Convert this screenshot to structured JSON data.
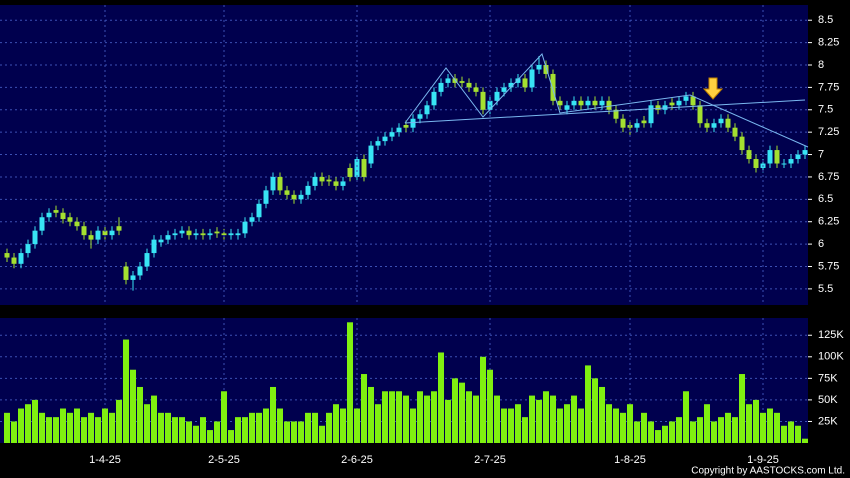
{
  "chart_data": [
    {
      "type": "candlestick",
      "categories": [
        null,
        null,
        null,
        null,
        null,
        null,
        null,
        null,
        null,
        null,
        null,
        null,
        null,
        null,
        "1-4-25",
        null,
        null,
        null,
        null,
        null,
        null,
        null,
        null,
        null,
        null,
        null,
        null,
        null,
        null,
        null,
        null,
        "2-5-25",
        null,
        null,
        null,
        null,
        null,
        null,
        null,
        null,
        null,
        null,
        null,
        null,
        null,
        null,
        null,
        null,
        null,
        null,
        "2-6-25",
        null,
        null,
        null,
        null,
        null,
        null,
        null,
        null,
        null,
        null,
        null,
        null,
        null,
        null,
        null,
        null,
        null,
        null,
        "2-7-25",
        null,
        null,
        null,
        null,
        null,
        null,
        null,
        null,
        null,
        null,
        null,
        null,
        null,
        null,
        null,
        null,
        null,
        null,
        null,
        "1-8-25",
        null,
        null,
        null,
        null,
        null,
        null,
        null,
        null,
        null,
        null,
        null,
        null,
        null,
        null,
        null,
        null,
        null,
        null,
        "1-9-25",
        null,
        null,
        null,
        null,
        null,
        null
      ],
      "open": [
        5.9,
        5.85,
        5.78,
        5.9,
        6.0,
        6.15,
        6.3,
        6.38,
        6.35,
        6.3,
        6.25,
        6.2,
        6.1,
        6.05,
        6.15,
        6.1,
        6.2,
        5.75,
        5.6,
        5.65,
        5.75,
        5.9,
        6.02,
        6.05,
        6.1,
        6.12,
        6.15,
        6.1,
        6.12,
        6.1,
        6.14,
        6.12,
        6.1,
        6.1,
        6.12,
        6.25,
        6.3,
        6.45,
        6.6,
        6.75,
        6.6,
        6.55,
        6.5,
        6.55,
        6.65,
        6.75,
        6.72,
        6.7,
        6.65,
        6.85,
        6.75,
        6.95,
        6.9,
        7.1,
        7.15,
        7.2,
        7.25,
        7.33,
        7.3,
        7.4,
        7.45,
        7.55,
        7.7,
        7.8,
        7.85,
        7.82,
        7.8,
        7.75,
        7.7,
        7.5,
        7.6,
        7.7,
        7.75,
        7.8,
        7.85,
        7.75,
        7.95,
        8.0,
        7.9,
        7.6,
        7.5,
        7.55,
        7.6,
        7.55,
        7.6,
        7.55,
        7.6,
        7.5,
        7.4,
        7.33,
        7.3,
        7.38,
        7.35,
        7.55,
        7.5,
        7.58,
        7.55,
        7.6,
        7.65,
        7.55,
        7.35,
        7.3,
        7.35,
        7.4,
        7.3,
        7.2,
        7.05,
        6.95,
        6.85,
        6.9,
        7.05,
        6.9,
        6.9,
        6.95,
        7.0
      ],
      "close": [
        5.85,
        5.78,
        5.9,
        6.0,
        6.15,
        6.3,
        6.35,
        6.35,
        6.28,
        6.25,
        6.2,
        6.1,
        6.05,
        6.15,
        6.1,
        6.15,
        6.15,
        5.6,
        5.65,
        5.75,
        5.9,
        6.05,
        6.05,
        6.1,
        6.12,
        6.15,
        6.1,
        6.12,
        6.1,
        6.12,
        6.12,
        6.1,
        6.12,
        6.12,
        6.25,
        6.3,
        6.45,
        6.6,
        6.75,
        6.6,
        6.55,
        6.5,
        6.55,
        6.65,
        6.75,
        6.7,
        6.7,
        6.65,
        6.7,
        6.75,
        6.95,
        6.75,
        7.1,
        7.15,
        7.2,
        7.25,
        7.3,
        7.3,
        7.4,
        7.45,
        7.55,
        7.7,
        7.8,
        7.85,
        7.8,
        7.8,
        7.75,
        7.7,
        7.5,
        7.6,
        7.7,
        7.75,
        7.8,
        7.85,
        7.75,
        7.95,
        8.0,
        7.9,
        7.6,
        7.55,
        7.55,
        7.6,
        7.55,
        7.6,
        7.55,
        7.6,
        7.5,
        7.4,
        7.3,
        7.3,
        7.35,
        7.35,
        7.55,
        7.5,
        7.55,
        7.55,
        7.6,
        7.65,
        7.55,
        7.35,
        7.3,
        7.35,
        7.4,
        7.3,
        7.2,
        7.05,
        6.95,
        6.85,
        6.9,
        7.05,
        6.9,
        6.9,
        6.95,
        7.0,
        7.05
      ],
      "high": [
        5.95,
        5.9,
        5.95,
        6.05,
        6.2,
        6.35,
        6.4,
        6.43,
        6.4,
        6.35,
        6.3,
        6.25,
        6.15,
        6.2,
        6.2,
        6.2,
        6.3,
        5.8,
        5.7,
        5.8,
        5.95,
        6.1,
        6.1,
        6.15,
        6.17,
        6.2,
        6.2,
        6.17,
        6.17,
        6.17,
        6.19,
        6.17,
        6.17,
        6.17,
        6.3,
        6.35,
        6.5,
        6.65,
        6.8,
        6.8,
        6.65,
        6.6,
        6.6,
        6.7,
        6.8,
        6.8,
        6.77,
        6.75,
        6.75,
        6.9,
        7.0,
        7.0,
        7.15,
        7.2,
        7.25,
        7.3,
        7.35,
        7.38,
        7.45,
        7.5,
        7.6,
        7.75,
        7.85,
        7.9,
        7.9,
        7.87,
        7.85,
        7.8,
        7.75,
        7.65,
        7.75,
        7.8,
        7.85,
        7.9,
        7.9,
        8.0,
        8.1,
        8.05,
        7.95,
        7.65,
        7.6,
        7.65,
        7.65,
        7.65,
        7.65,
        7.65,
        7.65,
        7.55,
        7.45,
        7.38,
        7.4,
        7.43,
        7.6,
        7.6,
        7.6,
        7.63,
        7.65,
        7.7,
        7.7,
        7.6,
        7.4,
        7.4,
        7.45,
        7.45,
        7.35,
        7.25,
        7.1,
        7.0,
        6.95,
        7.1,
        7.1,
        6.95,
        7.0,
        7.05,
        7.1
      ],
      "low": [
        5.8,
        5.73,
        5.73,
        5.85,
        5.95,
        6.1,
        6.25,
        6.3,
        6.23,
        6.2,
        6.15,
        6.05,
        5.95,
        6.0,
        6.05,
        6.05,
        6.1,
        5.55,
        5.48,
        5.6,
        5.7,
        5.85,
        5.97,
        6.0,
        6.05,
        6.07,
        6.05,
        6.05,
        6.05,
        6.05,
        6.07,
        6.05,
        6.05,
        6.05,
        6.07,
        6.2,
        6.25,
        6.4,
        6.55,
        6.55,
        6.5,
        6.45,
        6.45,
        6.5,
        6.6,
        6.65,
        6.65,
        6.6,
        6.6,
        6.7,
        6.7,
        6.7,
        6.85,
        7.05,
        7.1,
        7.15,
        7.2,
        7.25,
        7.25,
        7.35,
        7.4,
        7.5,
        7.65,
        7.75,
        7.75,
        7.75,
        7.7,
        7.65,
        7.45,
        7.45,
        7.55,
        7.65,
        7.7,
        7.75,
        7.7,
        7.7,
        7.9,
        7.85,
        7.55,
        7.5,
        7.45,
        7.5,
        7.5,
        7.5,
        7.5,
        7.5,
        7.45,
        7.35,
        7.25,
        7.22,
        7.25,
        7.3,
        7.3,
        7.45,
        7.45,
        7.5,
        7.5,
        7.55,
        7.5,
        7.3,
        7.25,
        7.25,
        7.3,
        7.25,
        7.15,
        7.0,
        6.9,
        6.8,
        6.8,
        6.85,
        6.85,
        6.85,
        6.85,
        6.9,
        6.95
      ],
      "up_color": "#38e4f4",
      "down_color": "#a4e030",
      "ylim": [
        5.32,
        8.67
      ],
      "yticks": [
        5.5,
        5.75,
        6,
        6.25,
        6.5,
        6.75,
        7,
        7.25,
        7.5,
        7.75,
        8,
        8.25,
        8.5
      ],
      "grid": true
    },
    {
      "type": "bar",
      "values": [
        35000,
        25000,
        40000,
        45000,
        50000,
        35000,
        30000,
        30000,
        40000,
        35000,
        40000,
        30000,
        35000,
        30000,
        40000,
        35000,
        50000,
        120000,
        85000,
        65000,
        45000,
        55000,
        35000,
        35000,
        30000,
        30000,
        25000,
        20000,
        30000,
        15000,
        25000,
        60000,
        15000,
        30000,
        30000,
        35000,
        35000,
        40000,
        65000,
        40000,
        25000,
        25000,
        25000,
        35000,
        35000,
        20000,
        35000,
        45000,
        40000,
        140000,
        40000,
        80000,
        65000,
        45000,
        60000,
        60000,
        60000,
        55000,
        40000,
        60000,
        55000,
        60000,
        105000,
        50000,
        75000,
        70000,
        60000,
        55000,
        100000,
        85000,
        55000,
        40000,
        40000,
        45000,
        30000,
        55000,
        50000,
        60000,
        55000,
        40000,
        45000,
        55000,
        40000,
        90000,
        75000,
        65000,
        45000,
        40000,
        35000,
        45000,
        25000,
        35000,
        25000,
        15000,
        20000,
        25000,
        30000,
        60000,
        25000,
        30000,
        45000,
        25000,
        30000,
        35000,
        30000,
        80000,
        45000,
        50000,
        35000,
        40000,
        35000,
        20000,
        25000,
        20000,
        5000
      ],
      "color": "#80f010",
      "ylim": [
        0,
        145000
      ],
      "yticks": [
        {
          "value": 25000,
          "label": "25K"
        },
        {
          "value": 50000,
          "label": "50K"
        },
        {
          "value": 75000,
          "label": "75K"
        },
        {
          "value": 100000,
          "label": "100K"
        },
        {
          "value": 125000,
          "label": "125K"
        }
      ],
      "grid": true
    }
  ],
  "footer": "Copyright by AASTOCKS.com Ltd."
}
